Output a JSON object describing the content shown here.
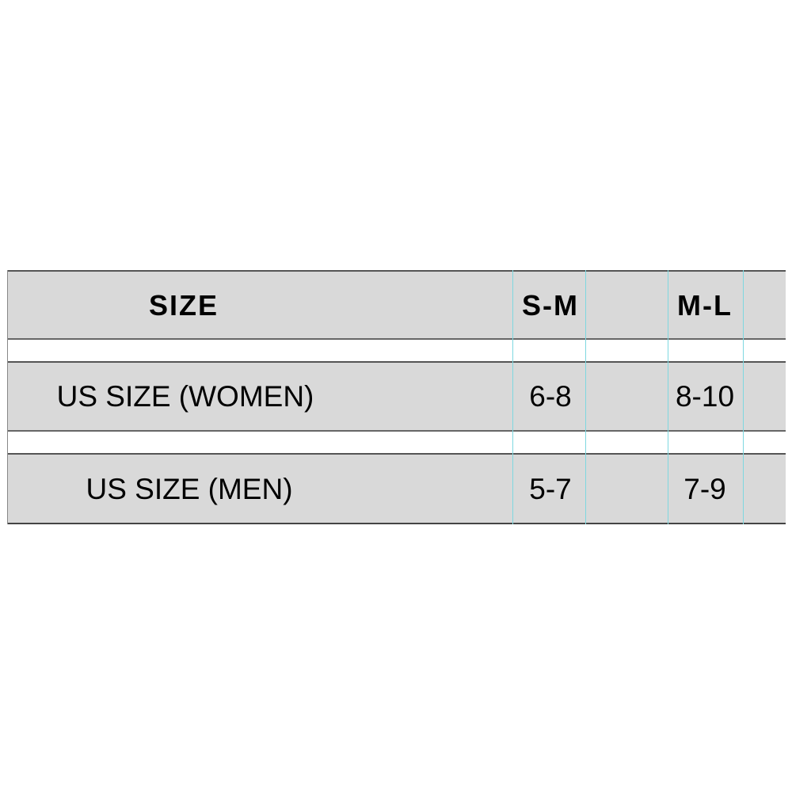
{
  "table": {
    "header": {
      "label": "SIZE",
      "columns": [
        "S-M",
        "M-L"
      ]
    },
    "rows": [
      {
        "label": "US SIZE (WOMEN)",
        "values": [
          "6-8",
          "8-10"
        ]
      },
      {
        "label": "US SIZE (MEN)",
        "values": [
          "5-7",
          "7-9"
        ]
      }
    ]
  },
  "colors": {
    "row_fill": "#d9d9d9",
    "grid_line": "#7fd8e0"
  }
}
